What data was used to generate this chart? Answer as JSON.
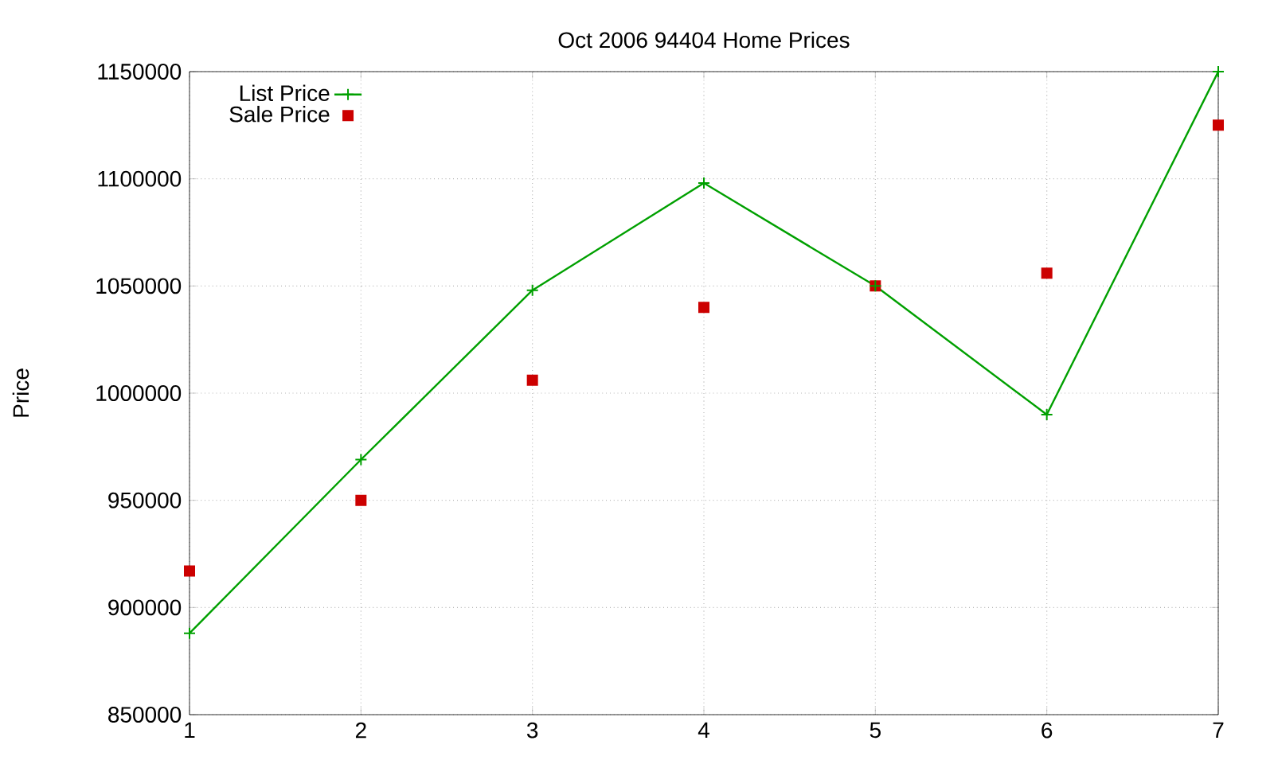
{
  "chart_data": {
    "type": "line",
    "title": "Oct 2006 94404 Home Prices",
    "ylabel": "Price",
    "x": [
      1,
      2,
      3,
      4,
      5,
      6,
      7
    ],
    "series": [
      {
        "name": "List Price",
        "color": "#00a000",
        "marker": "cross",
        "values": [
          888000,
          969000,
          1048000,
          1098000,
          1050000,
          990000,
          1150000
        ]
      },
      {
        "name": "Sale Price",
        "type": "scatter",
        "color": "#cc0000",
        "marker": "square",
        "values": [
          917000,
          950000,
          1006000,
          1040000,
          1050000,
          1056000,
          1125000
        ]
      }
    ],
    "xlim": [
      1,
      7
    ],
    "ylim": [
      850000,
      1150000
    ],
    "xticks": [
      1,
      2,
      3,
      4,
      5,
      6,
      7
    ],
    "yticks": [
      850000,
      900000,
      950000,
      1000000,
      1050000,
      1100000,
      1150000
    ],
    "grid": true,
    "legend": "top left"
  }
}
